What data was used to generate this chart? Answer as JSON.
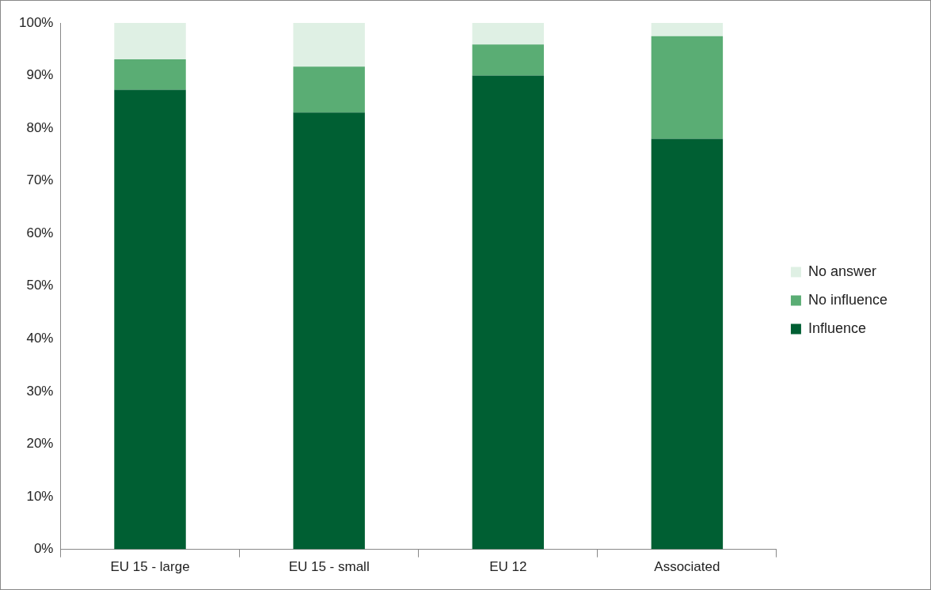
{
  "chart_data": {
    "type": "bar",
    "stacked": true,
    "categories": [
      "EU 15 - large",
      "EU 15 - small",
      "EU 12",
      "Associated"
    ],
    "series": [
      {
        "name": "Influence",
        "color": "#005f33",
        "values": [
          87.3,
          83.0,
          90.0,
          78.0
        ]
      },
      {
        "name": "No influence",
        "color": "#5aad74",
        "values": [
          5.8,
          8.7,
          5.9,
          19.5
        ]
      },
      {
        "name": "No answer",
        "color": "#dff0e4",
        "values": [
          6.9,
          8.3,
          4.1,
          2.5
        ]
      }
    ],
    "ylim": [
      0,
      100
    ],
    "yticks": [
      {
        "value": 0,
        "label": "0%"
      },
      {
        "value": 10,
        "label": "10%"
      },
      {
        "value": 20,
        "label": "20%"
      },
      {
        "value": 30,
        "label": "30%"
      },
      {
        "value": 40,
        "label": "40%"
      },
      {
        "value": 50,
        "label": "50%"
      },
      {
        "value": 60,
        "label": "60%"
      },
      {
        "value": 70,
        "label": "70%"
      },
      {
        "value": 80,
        "label": "80%"
      },
      {
        "value": 90,
        "label": "90%"
      },
      {
        "value": 100,
        "label": "100%"
      }
    ],
    "grid": false,
    "legend": "right"
  }
}
